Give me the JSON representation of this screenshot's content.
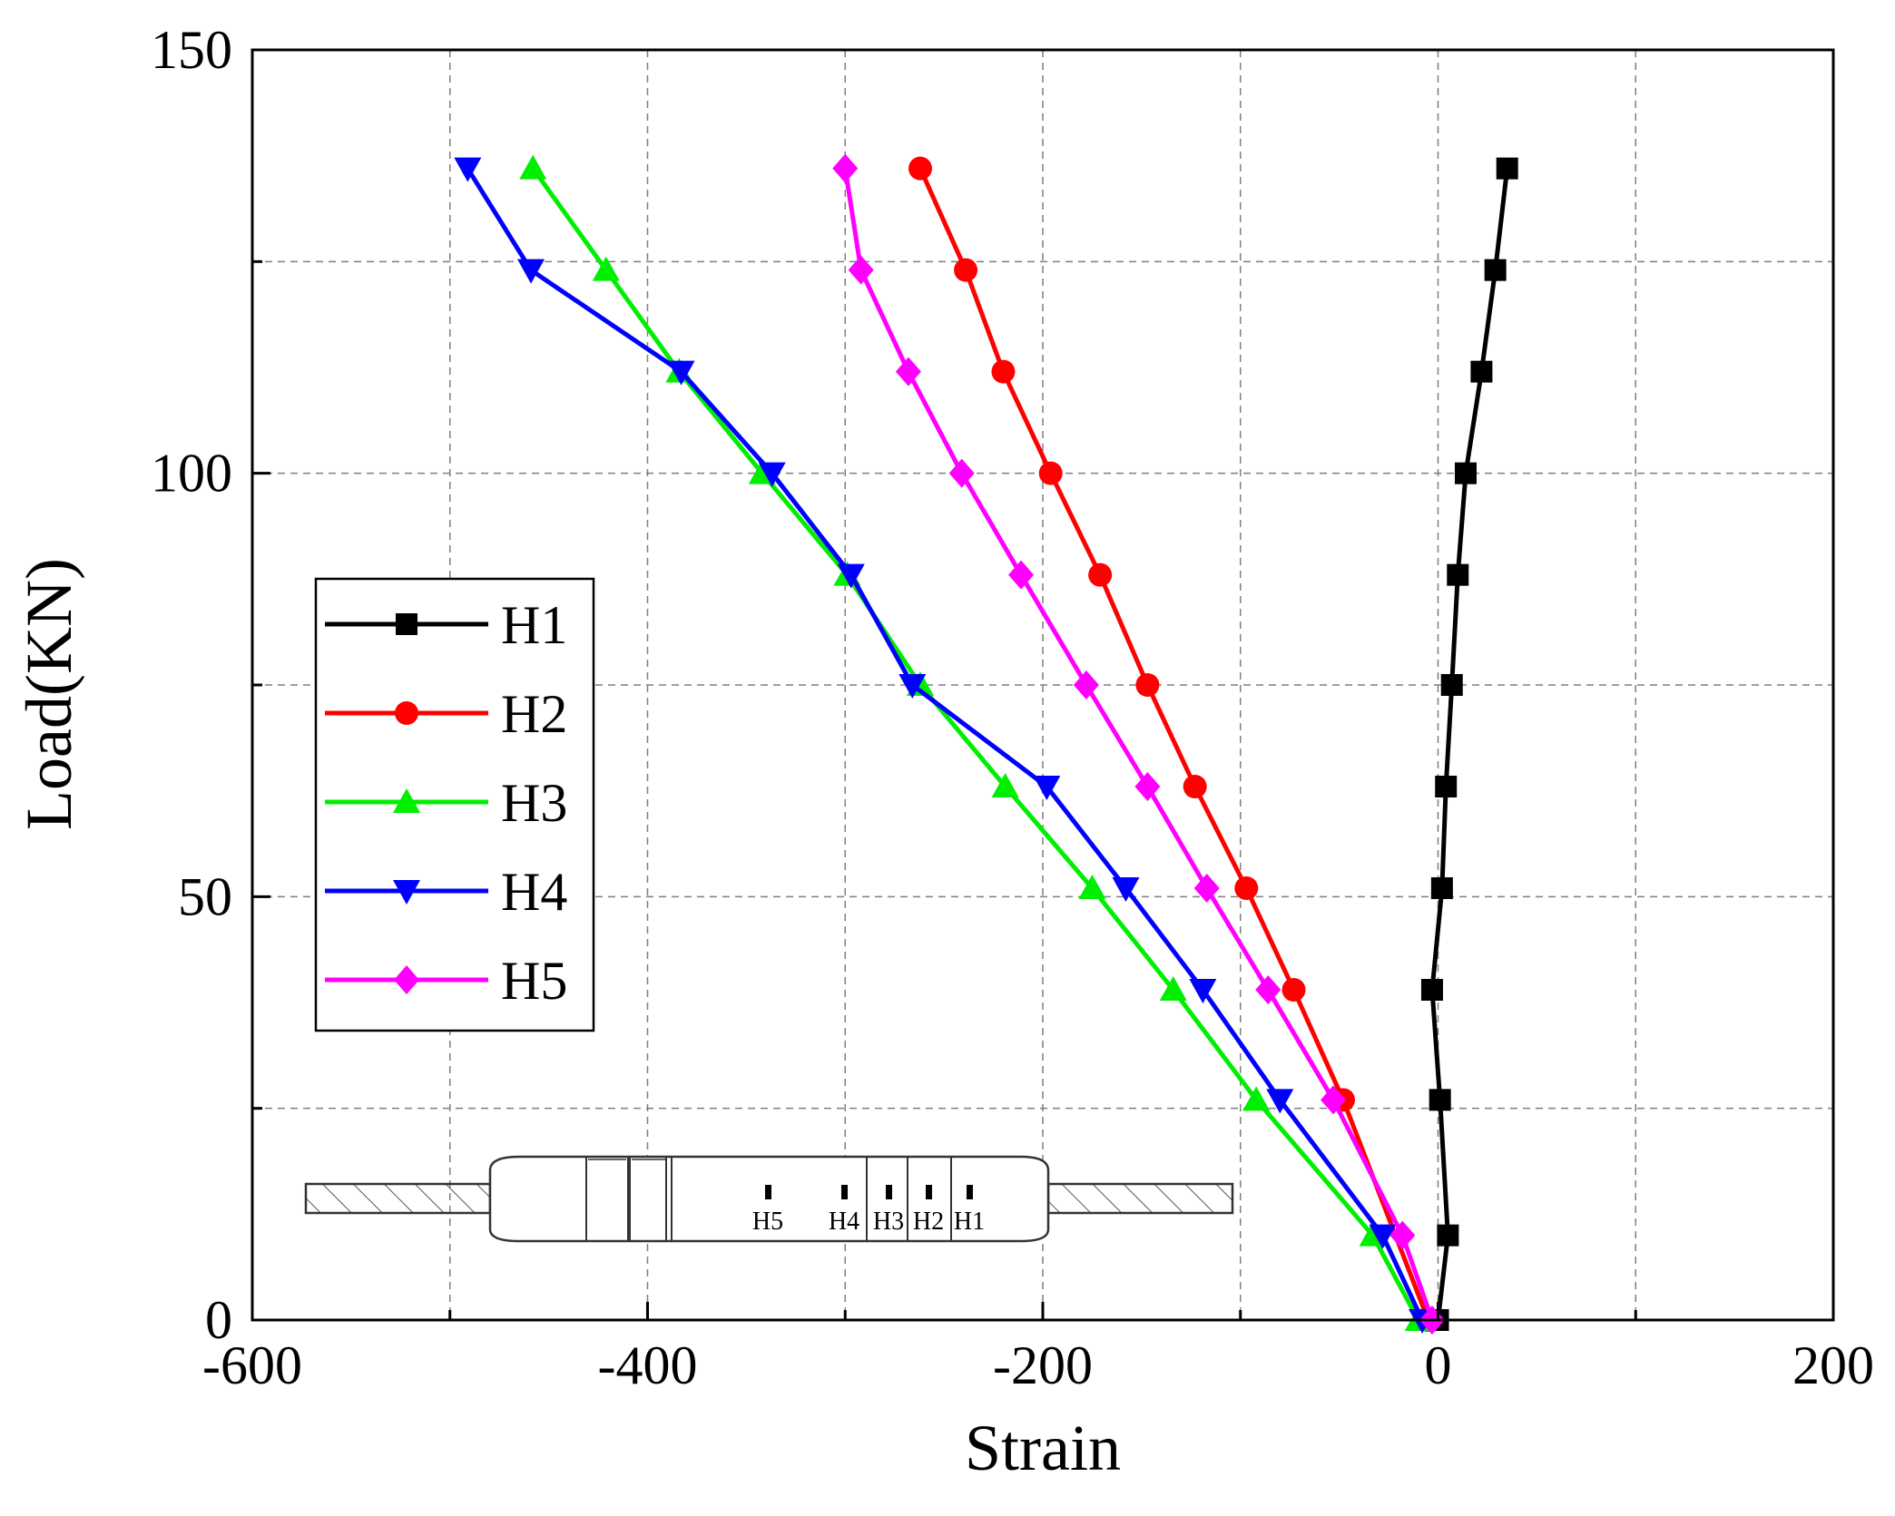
{
  "chart_data": {
    "type": "line",
    "title": "",
    "xlabel": "Strain",
    "ylabel": "Load(KN)",
    "xlim": [
      -600,
      200
    ],
    "ylim": [
      0,
      150
    ],
    "x_ticks": [
      -600,
      -400,
      -200,
      0,
      200
    ],
    "y_ticks": [
      0,
      50,
      100,
      150
    ],
    "grid": true,
    "legend_position": "left-middle",
    "series": [
      {
        "name": "H1",
        "color": "#000000",
        "marker": "square",
        "x": [
          0,
          5,
          1,
          -3,
          2,
          4,
          7,
          10,
          14,
          22,
          29,
          35
        ],
        "y": [
          0,
          10,
          26,
          39,
          51,
          63,
          75,
          88,
          100,
          112,
          124,
          136
        ]
      },
      {
        "name": "H2",
        "color": "#ff0000",
        "marker": "circle",
        "x": [
          -5,
          -48,
          -73,
          -97,
          -123,
          -147,
          -171,
          -196,
          -220,
          -239,
          -262
        ],
        "y": [
          0,
          26,
          39,
          51,
          63,
          75,
          88,
          100,
          112,
          124,
          136
        ]
      },
      {
        "name": "H3",
        "color": "#00ee00",
        "marker": "triangle-up",
        "x": [
          -10,
          -33,
          -92,
          -134,
          -175,
          -219,
          -262,
          -299,
          -342,
          -384,
          -421,
          -458
        ],
        "y": [
          0,
          10,
          26,
          39,
          51,
          63,
          75,
          88,
          100,
          112,
          124,
          136
        ]
      },
      {
        "name": "H4",
        "color": "#0000ff",
        "marker": "triangle-down",
        "x": [
          -8,
          -28,
          -80,
          -119,
          -158,
          -198,
          -266,
          -297,
          -337,
          -383,
          -459,
          -491
        ],
        "y": [
          0,
          10,
          26,
          39,
          51,
          63,
          75,
          88,
          100,
          112,
          124,
          136
        ]
      },
      {
        "name": "H5",
        "color": "#ff00ff",
        "marker": "diamond",
        "x": [
          -3,
          -18,
          -53,
          -86,
          -117,
          -147,
          -178,
          -211,
          -241,
          -268,
          -292,
          -300
        ],
        "y": [
          0,
          10,
          26,
          39,
          51,
          63,
          75,
          88,
          100,
          112,
          124,
          136
        ]
      }
    ],
    "inset_labels": [
      "H5",
      "H4",
      "H3",
      "H2",
      "H1"
    ]
  }
}
